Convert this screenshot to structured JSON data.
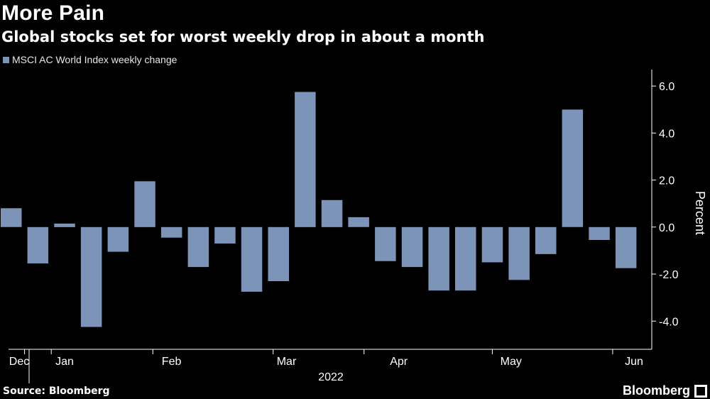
{
  "title": "More Pain",
  "subtitle": "Global stocks set for worst weekly drop in about a month",
  "source": "Source: Bloomberg",
  "brand": "Bloomberg",
  "colors": {
    "bar": "#7b94b7",
    "background": "#000000",
    "text": "#ffffff"
  },
  "chart_data": {
    "type": "bar",
    "title": "More Pain",
    "subtitle": "Global stocks set for worst weekly drop in about a month",
    "legend": [
      "MSCI AC World Index weekly change"
    ],
    "ylabel": "Percent",
    "xlabel": "2022",
    "ylim": [
      -5.2,
      6.7
    ],
    "yticks": [
      6.0,
      4.0,
      2.0,
      0.0,
      -2.0,
      -4.0
    ],
    "ytick_labels": [
      "6.0",
      "4.0",
      "2.0",
      "0.0",
      "-2.0",
      "-4.0"
    ],
    "month_labels": [
      "Dec",
      "Jan",
      "Feb",
      "Mar",
      "Apr",
      "May",
      "Jun"
    ],
    "month_positions": [
      0.3,
      2.0,
      6.0,
      10.3,
      14.5,
      18.7,
      23.3
    ],
    "year_label": "2022",
    "series": [
      {
        "name": "MSCI AC World Index weekly change",
        "values": [
          0.8,
          -1.55,
          0.15,
          -4.25,
          -1.05,
          1.95,
          -0.45,
          -1.7,
          -0.7,
          -2.75,
          -2.3,
          5.75,
          1.15,
          0.42,
          -1.45,
          -1.7,
          -2.7,
          -2.7,
          -1.5,
          -2.25,
          -1.15,
          5.0,
          -0.55,
          -1.75
        ]
      }
    ]
  }
}
